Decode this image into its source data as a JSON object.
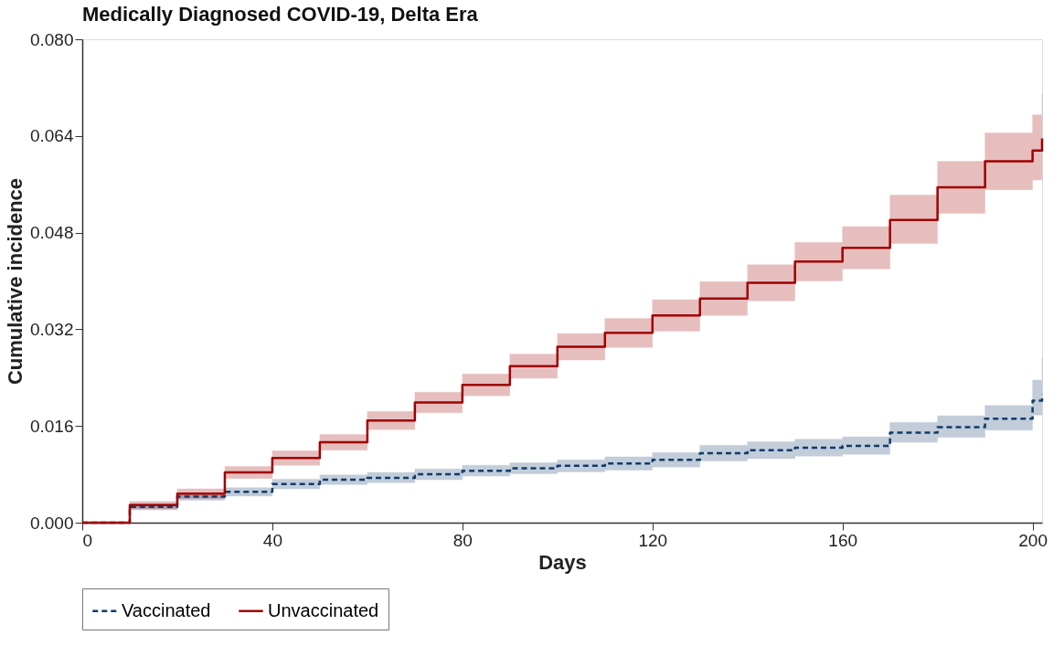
{
  "chart_data": {
    "type": "step",
    "title": "Medically Diagnosed COVID-19, Delta Era",
    "xlabel": "Days",
    "ylabel": "Cumulative incidence",
    "x": [
      0,
      10,
      20,
      30,
      40,
      50,
      60,
      70,
      80,
      90,
      100,
      110,
      120,
      130,
      140,
      150,
      160,
      170,
      180,
      190,
      200,
      202
    ],
    "series": [
      {
        "name": "Vaccinated",
        "color": "#0f3b6b",
        "line_style": "dashed",
        "values": [
          0,
          0.0026,
          0.0043,
          0.0051,
          0.0064,
          0.0071,
          0.0074,
          0.008,
          0.0086,
          0.009,
          0.0094,
          0.0098,
          0.0104,
          0.0115,
          0.012,
          0.0124,
          0.0127,
          0.0149,
          0.0158,
          0.0172,
          0.0202,
          0.0212
        ],
        "lower": [
          0,
          0.0021,
          0.0037,
          0.0044,
          0.0056,
          0.0063,
          0.0066,
          0.0071,
          0.0077,
          0.0081,
          0.0084,
          0.0087,
          0.0092,
          0.0102,
          0.0106,
          0.011,
          0.0113,
          0.0133,
          0.0141,
          0.0153,
          0.0178,
          0.0187
        ],
        "upper": [
          0,
          0.0031,
          0.0049,
          0.0058,
          0.0072,
          0.0079,
          0.0083,
          0.0089,
          0.0095,
          0.0099,
          0.0104,
          0.0109,
          0.0116,
          0.0128,
          0.0134,
          0.0138,
          0.0142,
          0.0166,
          0.0177,
          0.0194,
          0.0236,
          0.0273
        ]
      },
      {
        "name": "Unvaccinated",
        "color": "#a00000",
        "line_style": "solid",
        "values": [
          0,
          0.0029,
          0.0048,
          0.0083,
          0.0107,
          0.0133,
          0.0169,
          0.0199,
          0.0228,
          0.0259,
          0.0291,
          0.0314,
          0.0343,
          0.0371,
          0.0397,
          0.0432,
          0.0455,
          0.0501,
          0.0555,
          0.0598,
          0.0616,
          0.0636
        ],
        "lower": [
          0,
          0.0023,
          0.004,
          0.0073,
          0.0095,
          0.012,
          0.0154,
          0.0182,
          0.021,
          0.0239,
          0.0269,
          0.029,
          0.0317,
          0.0343,
          0.0367,
          0.04,
          0.042,
          0.0462,
          0.0512,
          0.0551,
          0.0567,
          0.057
        ],
        "upper": [
          0,
          0.0035,
          0.0056,
          0.0093,
          0.0119,
          0.0146,
          0.0184,
          0.0216,
          0.0246,
          0.0279,
          0.0313,
          0.0338,
          0.0369,
          0.0399,
          0.0427,
          0.0464,
          0.049,
          0.0542,
          0.0598,
          0.0645,
          0.0675,
          0.071
        ]
      }
    ],
    "xlim": [
      0,
      202
    ],
    "xticks": [
      0,
      40,
      80,
      120,
      160,
      200
    ],
    "ylim": [
      0,
      0.08
    ],
    "yticks": [
      {
        "value": 0,
        "label": "0.000"
      },
      {
        "value": 0.016,
        "label": "0.016"
      },
      {
        "value": 0.032,
        "label": "0.032"
      },
      {
        "value": 0.048,
        "label": "0.048"
      },
      {
        "value": 0.064,
        "label": "0.064"
      },
      {
        "value": 0.08,
        "label": "0.080"
      }
    ],
    "grid": false,
    "legend": "bottom",
    "marker": "none"
  }
}
